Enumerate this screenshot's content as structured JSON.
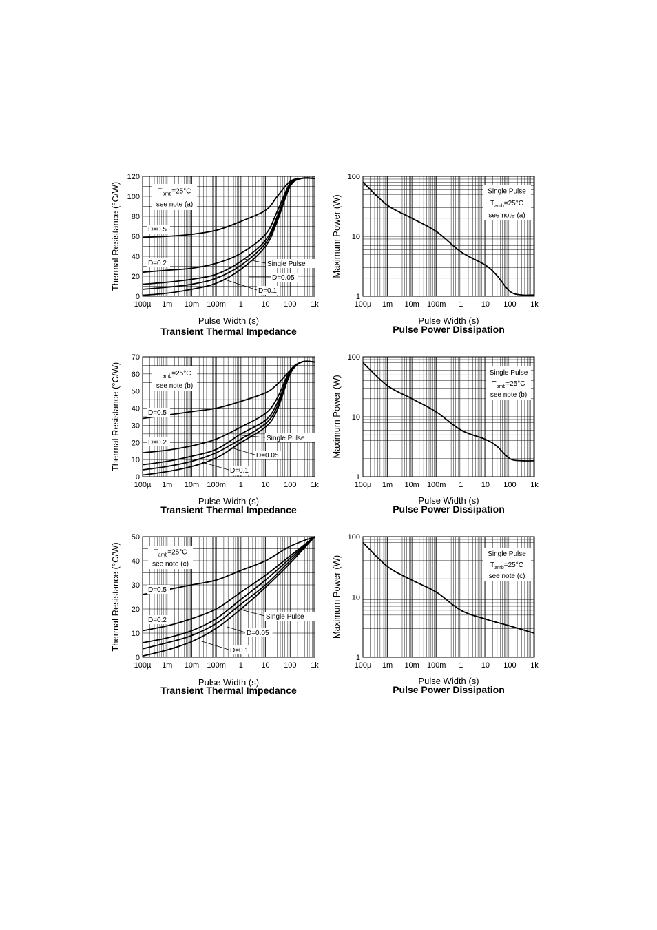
{
  "charts": [
    {
      "id": "zth-a",
      "chart_data": {
        "type": "line",
        "xscale": "log",
        "yscale": "linear",
        "xlim": [
          0.0001,
          1000
        ],
        "ylim": [
          0,
          120
        ],
        "yticks": [
          0,
          20,
          40,
          60,
          80,
          100,
          120
        ],
        "title": "Transient Thermal Impedance",
        "xlabel": "Pulse Width (s)",
        "ylabel": "Thermal Resistance (°C/W)",
        "legend_box": {
          "lines": [
            "T|amb|=25°C",
            "see note (a)"
          ]
        },
        "series": [
          {
            "name": "D=0.5",
            "points": [
              [
                0.0001,
                59
              ],
              [
                0.001,
                60
              ],
              [
                0.01,
                62
              ],
              [
                0.1,
                66
              ],
              [
                1,
                75
              ],
              [
                10,
                86
              ],
              [
                30,
                100
              ],
              [
                100,
                115
              ],
              [
                300,
                118
              ],
              [
                1000,
                118
              ]
            ]
          },
          {
            "name": "D=0.2",
            "points": [
              [
                0.0001,
                24
              ],
              [
                0.001,
                26
              ],
              [
                0.01,
                28
              ],
              [
                0.1,
                33
              ],
              [
                1,
                43
              ],
              [
                10,
                62
              ],
              [
                30,
                85
              ],
              [
                100,
                113
              ],
              [
                300,
                118
              ],
              [
                1000,
                118
              ]
            ]
          },
          {
            "name": "D=0.1",
            "points": [
              [
                0.0001,
                12
              ],
              [
                0.001,
                14
              ],
              [
                0.01,
                17
              ],
              [
                0.1,
                22
              ],
              [
                1,
                35
              ],
              [
                10,
                56
              ],
              [
                30,
                80
              ],
              [
                100,
                112
              ],
              [
                300,
                118
              ],
              [
                1000,
                118
              ]
            ]
          },
          {
            "name": "D=0.05",
            "points": [
              [
                0.0001,
                7
              ],
              [
                0.001,
                9
              ],
              [
                0.01,
                12
              ],
              [
                0.1,
                18
              ],
              [
                1,
                31
              ],
              [
                10,
                53
              ],
              [
                30,
                78
              ],
              [
                100,
                111
              ],
              [
                300,
                118
              ],
              [
                1000,
                118
              ]
            ]
          },
          {
            "name": "Single Pulse",
            "points": [
              [
                0.0001,
                1
              ],
              [
                0.001,
                3
              ],
              [
                0.01,
                7
              ],
              [
                0.1,
                13
              ],
              [
                1,
                27
              ],
              [
                10,
                50
              ],
              [
                30,
                75
              ],
              [
                100,
                110
              ],
              [
                300,
                118
              ],
              [
                1000,
                118
              ]
            ]
          }
        ]
      }
    },
    {
      "id": "ppd-a",
      "chart_data": {
        "type": "line",
        "xscale": "log",
        "yscale": "log",
        "xlim": [
          0.0001,
          1000
        ],
        "ylim": [
          1,
          100
        ],
        "title": "Pulse Power Dissipation",
        "xlabel": "Pulse Width (s)",
        "ylabel": "Maximum Power (W)",
        "legend_box": {
          "lines": [
            "Single Pulse",
            "T|amb|=25°C",
            "see note (a)"
          ]
        },
        "series": [
          {
            "name": "Single Pulse",
            "points": [
              [
                0.0001,
                80
              ],
              [
                0.001,
                33
              ],
              [
                0.01,
                20
              ],
              [
                0.1,
                12
              ],
              [
                1,
                5.5
              ],
              [
                10,
                3.3
              ],
              [
                30,
                2.2
              ],
              [
                100,
                1.2
              ],
              [
                300,
                1.05
              ],
              [
                1000,
                1.05
              ]
            ]
          }
        ]
      }
    },
    {
      "id": "zth-b",
      "chart_data": {
        "type": "line",
        "xscale": "log",
        "yscale": "linear",
        "xlim": [
          0.0001,
          1000
        ],
        "ylim": [
          0,
          70
        ],
        "yticks": [
          0,
          10,
          20,
          30,
          40,
          50,
          60,
          70
        ],
        "title": "Transient Thermal Impedance",
        "xlabel": "Pulse Width (s)",
        "ylabel": "Thermal Resistance (°C/W)",
        "legend_box": {
          "lines": [
            "T|amb|=25°C",
            "see note (b)"
          ]
        },
        "series": [
          {
            "name": "D=0.5",
            "points": [
              [
                0.0001,
                34
              ],
              [
                0.001,
                36
              ],
              [
                0.01,
                38
              ],
              [
                0.1,
                40
              ],
              [
                1,
                44
              ],
              [
                10,
                49
              ],
              [
                30,
                54
              ],
              [
                100,
                62
              ],
              [
                300,
                67
              ],
              [
                1000,
                67
              ]
            ]
          },
          {
            "name": "D=0.2",
            "points": [
              [
                0.0001,
                14
              ],
              [
                0.001,
                15.5
              ],
              [
                0.01,
                18
              ],
              [
                0.1,
                22
              ],
              [
                1,
                29
              ],
              [
                10,
                37
              ],
              [
                30,
                46
              ],
              [
                100,
                62
              ],
              [
                300,
                67
              ],
              [
                1000,
                67
              ]
            ]
          },
          {
            "name": "D=0.1",
            "points": [
              [
                0.0001,
                7
              ],
              [
                0.001,
                9
              ],
              [
                0.01,
                12
              ],
              [
                0.1,
                16
              ],
              [
                1,
                25
              ],
              [
                10,
                33
              ],
              [
                30,
                43
              ],
              [
                100,
                61
              ],
              [
                300,
                67
              ],
              [
                1000,
                67
              ]
            ]
          },
          {
            "name": "D=0.05",
            "points": [
              [
                0.0001,
                4
              ],
              [
                0.001,
                6
              ],
              [
                0.01,
                9
              ],
              [
                0.1,
                14
              ],
              [
                1,
                22
              ],
              [
                10,
                31
              ],
              [
                30,
                41
              ],
              [
                100,
                61
              ],
              [
                300,
                67
              ],
              [
                1000,
                67
              ]
            ]
          },
          {
            "name": "Single Pulse",
            "points": [
              [
                0.0001,
                1
              ],
              [
                0.001,
                3
              ],
              [
                0.01,
                6
              ],
              [
                0.1,
                11
              ],
              [
                1,
                20
              ],
              [
                10,
                29
              ],
              [
                30,
                39
              ],
              [
                100,
                60
              ],
              [
                300,
                67
              ],
              [
                1000,
                67
              ]
            ]
          }
        ]
      }
    },
    {
      "id": "ppd-b",
      "chart_data": {
        "type": "line",
        "xscale": "log",
        "yscale": "log",
        "xlim": [
          0.0001,
          1000
        ],
        "ylim": [
          1,
          100
        ],
        "title": "Pulse Power Dissipation",
        "xlabel": "Pulse Width (s)",
        "ylabel": "Maximum Power (W)",
        "legend_box": {
          "lines": [
            "Single Pulse",
            "T|amb|=25°C",
            "see note (b)"
          ]
        },
        "series": [
          {
            "name": "Single Pulse",
            "points": [
              [
                0.0001,
                80
              ],
              [
                0.001,
                33
              ],
              [
                0.01,
                20
              ],
              [
                0.1,
                12
              ],
              [
                1,
                6
              ],
              [
                10,
                4.2
              ],
              [
                30,
                3.2
              ],
              [
                100,
                2
              ],
              [
                300,
                1.85
              ],
              [
                1000,
                1.85
              ]
            ]
          }
        ]
      }
    },
    {
      "id": "zth-c",
      "chart_data": {
        "type": "line",
        "xscale": "log",
        "yscale": "linear",
        "xlim": [
          0.0001,
          1000
        ],
        "ylim": [
          0,
          50
        ],
        "yticks": [
          0,
          10,
          20,
          30,
          40,
          50
        ],
        "title": "Transient Thermal Impedance",
        "xlabel": "Pulse Width (s)",
        "ylabel": "Thermal Resistance (°C/W)",
        "legend_box": {
          "lines": [
            "T|amb|=25°C",
            "see note (c)"
          ]
        },
        "series": [
          {
            "name": "D=0.5",
            "points": [
              [
                0.0001,
                26
              ],
              [
                0.001,
                28
              ],
              [
                0.01,
                30
              ],
              [
                0.1,
                32
              ],
              [
                1,
                36
              ],
              [
                10,
                40
              ],
              [
                100,
                46
              ],
              [
                1000,
                50
              ]
            ]
          },
          {
            "name": "D=0.2",
            "points": [
              [
                0.0001,
                11
              ],
              [
                0.001,
                13
              ],
              [
                0.01,
                16
              ],
              [
                0.1,
                20
              ],
              [
                1,
                27
              ],
              [
                10,
                34
              ],
              [
                100,
                42
              ],
              [
                1000,
                50
              ]
            ]
          },
          {
            "name": "D=0.1",
            "points": [
              [
                0.0001,
                6
              ],
              [
                0.001,
                8
              ],
              [
                0.01,
                11
              ],
              [
                0.1,
                16
              ],
              [
                1,
                24
              ],
              [
                10,
                32
              ],
              [
                100,
                41
              ],
              [
                1000,
                50
              ]
            ]
          },
          {
            "name": "D=0.05",
            "points": [
              [
                0.0001,
                3.5
              ],
              [
                0.001,
                6
              ],
              [
                0.01,
                9
              ],
              [
                0.1,
                14
              ],
              [
                1,
                22
              ],
              [
                10,
                30
              ],
              [
                100,
                40
              ],
              [
                1000,
                50
              ]
            ]
          },
          {
            "name": "Single Pulse",
            "points": [
              [
                0.0001,
                0.5
              ],
              [
                0.001,
                3
              ],
              [
                0.01,
                6.5
              ],
              [
                0.1,
                12
              ],
              [
                1,
                20
              ],
              [
                10,
                29
              ],
              [
                100,
                39
              ],
              [
                1000,
                50
              ]
            ]
          }
        ]
      }
    },
    {
      "id": "ppd-c",
      "chart_data": {
        "type": "line",
        "xscale": "log",
        "yscale": "log",
        "xlim": [
          0.0001,
          1000
        ],
        "ylim": [
          1,
          100
        ],
        "title": "Pulse Power Dissipation",
        "xlabel": "Pulse Width (s)",
        "ylabel": "Maximum Power (W)",
        "legend_box": {
          "lines": [
            "Single Pulse",
            "T|amb|=25°C",
            "see note (c)"
          ]
        },
        "series": [
          {
            "name": "Single Pulse",
            "points": [
              [
                0.0001,
                80
              ],
              [
                0.001,
                32
              ],
              [
                0.01,
                19
              ],
              [
                0.1,
                12
              ],
              [
                1,
                6
              ],
              [
                10,
                4.3
              ],
              [
                100,
                3.3
              ],
              [
                1000,
                2.5
              ]
            ]
          }
        ]
      }
    }
  ],
  "x_tick_labels": [
    "100µ",
    "1m",
    "10m",
    "100m",
    "1",
    "10",
    "100",
    "1k"
  ],
  "log_y_tick_labels": [
    "1",
    "10",
    "100"
  ]
}
